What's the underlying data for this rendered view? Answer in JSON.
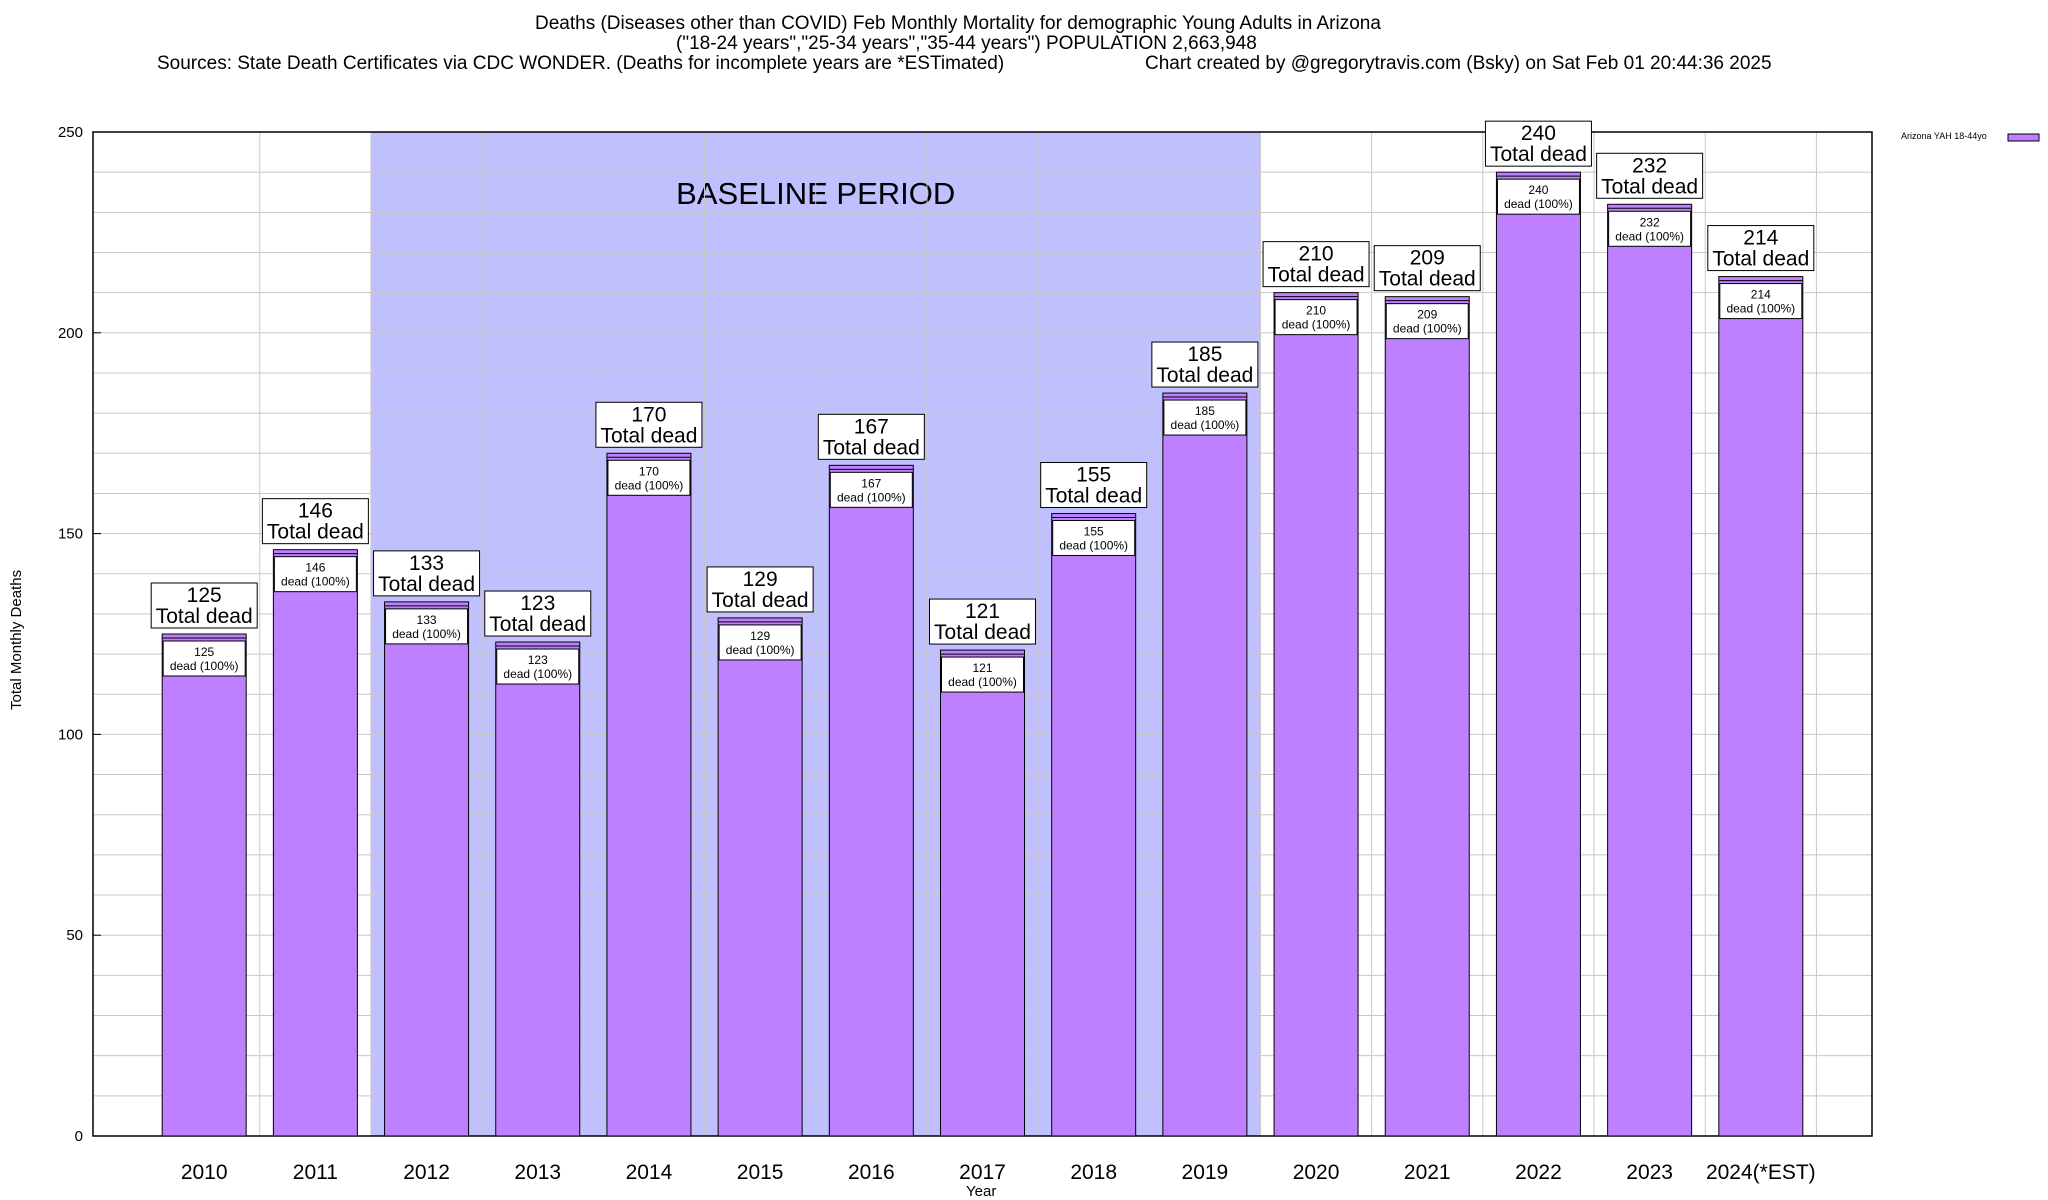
{
  "titles": {
    "line1": "Deaths (Diseases other than COVID) Feb Monthly Mortality for demographic Young Adults in Arizona",
    "line2": "(\"18-24 years\",\"25-34 years\",\"35-44 years\") POPULATION 2,663,948",
    "line3_left": "Sources: State Death Certificates via CDC WONDER. (Deaths for incomplete years are *ESTimated)",
    "line3_right": "Chart created by @gregorytravis.com (Bsky) on Sat Feb 01 20:44:36 2025"
  },
  "chart_data": {
    "type": "bar",
    "categories": [
      "2010",
      "2011",
      "2012",
      "2013",
      "2014",
      "2015",
      "2016",
      "2017",
      "2018",
      "2019",
      "2020",
      "2021",
      "2022",
      "2023",
      "2024(*EST)"
    ],
    "series": [
      {
        "name": "Arizona YAH 18-44yo",
        "color": "#bf80ff",
        "values": [
          125,
          146,
          133,
          123,
          170,
          129,
          167,
          121,
          155,
          185,
          210,
          209,
          240,
          232,
          214
        ]
      }
    ],
    "top_label_suffix": "Total dead",
    "inner_label_suffix": "dead (100%)",
    "xlabel": "Year",
    "ylabel": "Total Monthly Deaths",
    "ylim": [
      0,
      250
    ],
    "yticks": [
      0,
      50,
      100,
      150,
      200,
      250
    ],
    "grid": true,
    "legend_position": "top-right",
    "baseline_period": {
      "label": "BASELINE PERIOD",
      "start": "2012",
      "end": "2019",
      "color": "#c0c0ff"
    }
  }
}
